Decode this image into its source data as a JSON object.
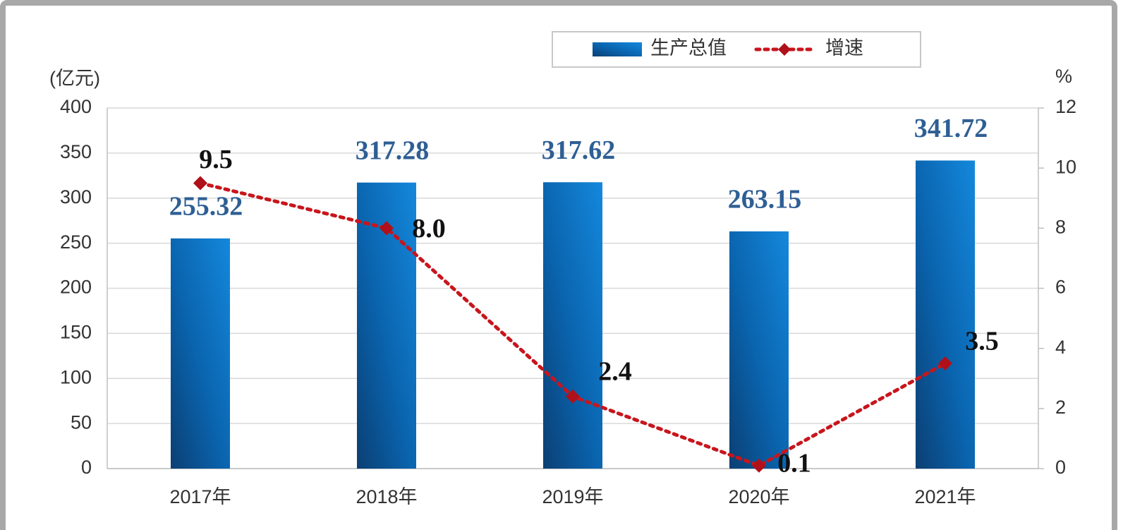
{
  "chart_data": {
    "type": "bar",
    "categories": [
      "2017年",
      "2018年",
      "2019年",
      "2020年",
      "2021年"
    ],
    "y_label": "(亿元)",
    "y2_label": "%",
    "ylim": [
      0,
      400
    ],
    "yticks": [
      0,
      50,
      100,
      150,
      200,
      250,
      300,
      350,
      400
    ],
    "y2lim": [
      0,
      12
    ],
    "y2ticks": [
      0,
      2,
      4,
      6,
      8,
      10,
      12
    ],
    "grid": true,
    "series": [
      {
        "name": "生产总值",
        "type": "bar",
        "color": "#0a6fc2",
        "values": [
          255.32,
          317.28,
          317.62,
          263.15,
          341.72
        ]
      },
      {
        "name": "增速",
        "type": "line",
        "axis": "y2",
        "color": "#c8151c",
        "values": [
          9.5,
          8.0,
          2.4,
          0.1,
          3.5
        ],
        "value_labels": [
          "9.5",
          "8.0",
          "2.4",
          "0.1",
          "3.5"
        ]
      }
    ]
  }
}
